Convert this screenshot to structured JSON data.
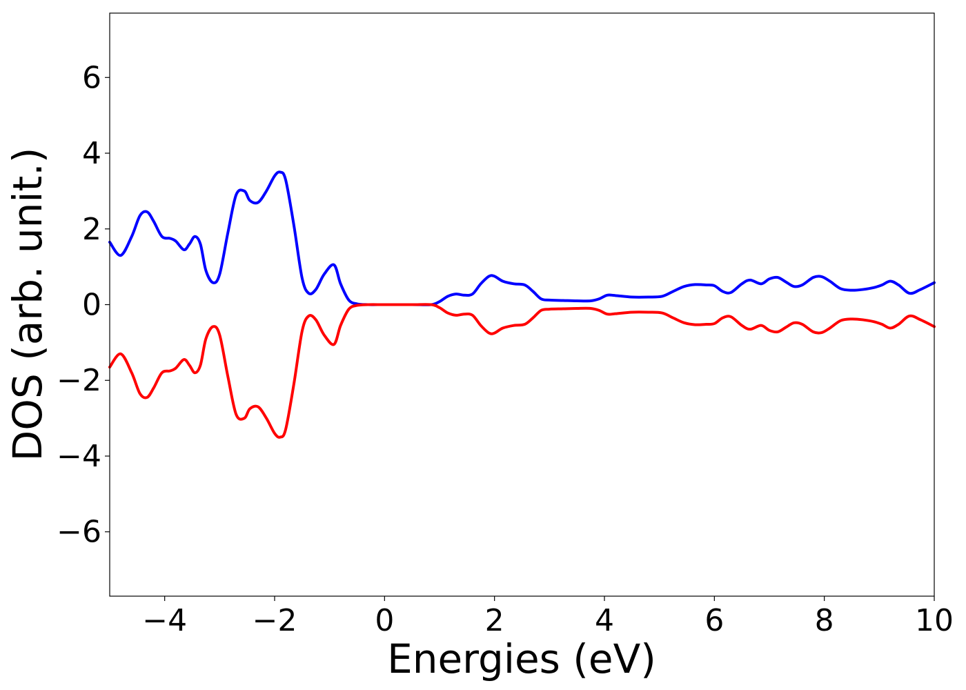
{
  "chart_data": {
    "type": "line",
    "title": "",
    "xlabel": "Energies (eV)",
    "ylabel": "DOS (arb. unit.)",
    "xlim": [
      -5,
      10
    ],
    "ylim": [
      -7.7,
      7.7
    ],
    "xticks": [
      -4,
      -2,
      0,
      2,
      4,
      6,
      8,
      10
    ],
    "xtick_labels": [
      "−4",
      "−2",
      "0",
      "2",
      "4",
      "6",
      "8",
      "10"
    ],
    "yticks": [
      -6,
      -4,
      -2,
      0,
      2,
      4,
      6
    ],
    "ytick_labels": [
      "−6",
      "−4",
      "−2",
      "0",
      "2",
      "4",
      "6"
    ],
    "grid": false,
    "series": [
      {
        "color": "#0000ff",
        "x": [
          -5.0,
          -4.8,
          -4.6,
          -4.45,
          -4.32,
          -4.2,
          -4.05,
          -3.9,
          -3.8,
          -3.65,
          -3.55,
          -3.45,
          -3.35,
          -3.25,
          -3.12,
          -3.0,
          -2.85,
          -2.7,
          -2.55,
          -2.45,
          -2.3,
          -2.15,
          -2.0,
          -1.9,
          -1.8,
          -1.65,
          -1.5,
          -1.38,
          -1.25,
          -1.1,
          -0.92,
          -0.8,
          -0.65,
          -0.5,
          -0.3,
          0.0,
          0.5,
          0.85,
          1.0,
          1.15,
          1.3,
          1.45,
          1.6,
          1.75,
          1.9,
          2.0,
          2.15,
          2.35,
          2.55,
          2.7,
          2.85,
          3.0,
          3.25,
          3.5,
          3.75,
          3.9,
          4.05,
          4.2,
          4.5,
          4.8,
          5.05,
          5.25,
          5.45,
          5.65,
          5.85,
          6.0,
          6.15,
          6.3,
          6.5,
          6.65,
          6.85,
          7.0,
          7.15,
          7.3,
          7.45,
          7.6,
          7.8,
          7.95,
          8.1,
          8.3,
          8.5,
          8.7,
          8.9,
          9.05,
          9.2,
          9.35,
          9.55,
          9.75,
          10.0
        ],
        "y": [
          1.65,
          1.3,
          1.8,
          2.35,
          2.45,
          2.2,
          1.8,
          1.75,
          1.68,
          1.45,
          1.6,
          1.8,
          1.6,
          0.9,
          0.58,
          0.8,
          1.9,
          2.9,
          3.0,
          2.75,
          2.7,
          3.0,
          3.4,
          3.5,
          3.3,
          2.1,
          0.7,
          0.3,
          0.4,
          0.8,
          1.05,
          0.55,
          0.12,
          0.02,
          0.0,
          0.0,
          0.0,
          0.0,
          0.08,
          0.22,
          0.28,
          0.25,
          0.28,
          0.55,
          0.75,
          0.75,
          0.62,
          0.55,
          0.52,
          0.35,
          0.15,
          0.12,
          0.11,
          0.1,
          0.1,
          0.15,
          0.25,
          0.24,
          0.2,
          0.2,
          0.22,
          0.35,
          0.48,
          0.53,
          0.52,
          0.5,
          0.35,
          0.32,
          0.55,
          0.65,
          0.55,
          0.68,
          0.72,
          0.6,
          0.48,
          0.52,
          0.72,
          0.74,
          0.62,
          0.42,
          0.38,
          0.4,
          0.45,
          0.52,
          0.62,
          0.52,
          0.3,
          0.4,
          0.58
        ]
      },
      {
        "color": "#ff0000",
        "x": [
          -5.0,
          -4.8,
          -4.6,
          -4.45,
          -4.32,
          -4.2,
          -4.05,
          -3.9,
          -3.8,
          -3.65,
          -3.55,
          -3.45,
          -3.35,
          -3.25,
          -3.12,
          -3.0,
          -2.85,
          -2.7,
          -2.55,
          -2.45,
          -2.3,
          -2.15,
          -2.0,
          -1.9,
          -1.8,
          -1.65,
          -1.5,
          -1.38,
          -1.25,
          -1.1,
          -0.92,
          -0.8,
          -0.65,
          -0.5,
          -0.3,
          0.0,
          0.5,
          0.85,
          1.0,
          1.15,
          1.3,
          1.45,
          1.6,
          1.75,
          1.9,
          2.0,
          2.15,
          2.35,
          2.55,
          2.7,
          2.85,
          3.0,
          3.25,
          3.5,
          3.75,
          3.9,
          4.05,
          4.2,
          4.5,
          4.8,
          5.05,
          5.25,
          5.45,
          5.65,
          5.85,
          6.0,
          6.15,
          6.3,
          6.5,
          6.65,
          6.85,
          7.0,
          7.15,
          7.3,
          7.45,
          7.6,
          7.8,
          7.95,
          8.1,
          8.3,
          8.5,
          8.7,
          8.9,
          9.05,
          9.2,
          9.35,
          9.55,
          9.75,
          10.0
        ],
        "y": [
          -1.65,
          -1.3,
          -1.8,
          -2.35,
          -2.45,
          -2.2,
          -1.8,
          -1.75,
          -1.68,
          -1.45,
          -1.6,
          -1.8,
          -1.6,
          -0.9,
          -0.58,
          -0.8,
          -1.9,
          -2.9,
          -3.0,
          -2.75,
          -2.7,
          -3.0,
          -3.4,
          -3.5,
          -3.3,
          -2.1,
          -0.7,
          -0.3,
          -0.4,
          -0.8,
          -1.05,
          -0.55,
          -0.12,
          -0.02,
          0.0,
          0.0,
          0.0,
          0.0,
          -0.08,
          -0.22,
          -0.28,
          -0.25,
          -0.28,
          -0.55,
          -0.75,
          -0.75,
          -0.62,
          -0.55,
          -0.52,
          -0.35,
          -0.15,
          -0.12,
          -0.11,
          -0.1,
          -0.1,
          -0.15,
          -0.25,
          -0.24,
          -0.2,
          -0.2,
          -0.22,
          -0.35,
          -0.48,
          -0.53,
          -0.52,
          -0.5,
          -0.35,
          -0.32,
          -0.55,
          -0.65,
          -0.55,
          -0.68,
          -0.72,
          -0.6,
          -0.48,
          -0.52,
          -0.72,
          -0.74,
          -0.62,
          -0.42,
          -0.38,
          -0.4,
          -0.45,
          -0.52,
          -0.62,
          -0.52,
          -0.3,
          -0.4,
          -0.58
        ]
      }
    ]
  }
}
